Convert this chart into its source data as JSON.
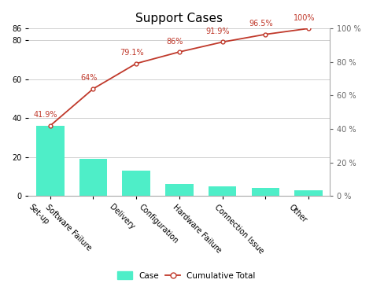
{
  "title": "Support Cases",
  "categories": [
    "Set-up",
    "Software Failure",
    "Delivery",
    "Configuration",
    "Hardware Failure",
    "Connection Issue",
    "Other"
  ],
  "bar_values": [
    36,
    19,
    13,
    6,
    5,
    4,
    3
  ],
  "cumulative_pct": [
    41.9,
    64.0,
    79.1,
    86.0,
    91.9,
    96.5,
    100.0
  ],
  "cumulative_labels": [
    "41.9%",
    "64%",
    "79.1%",
    "86%",
    "91.9%",
    "96.5%",
    "100%"
  ],
  "bar_color": "#4EEEC8",
  "line_color": "#C0392B",
  "line_marker": "o",
  "bar_ylim_max": 86,
  "bar_yticks": [
    0,
    20,
    40,
    60,
    80,
    86
  ],
  "pct_ylim_max": 100,
  "pct_yticks": [
    0,
    20,
    40,
    60,
    80,
    100
  ],
  "pct_ytick_labels": [
    "0 %",
    "20 %",
    "40 %",
    "60 %",
    "80 %",
    "100 %"
  ],
  "title_fontsize": 11,
  "tick_fontsize": 7,
  "label_fontsize": 7,
  "background_color": "#ffffff",
  "grid_color": "#d0d0d0",
  "legend_bar_label": "Case",
  "legend_line_label": "Cumulative Total",
  "xlabel_rotation": -45
}
